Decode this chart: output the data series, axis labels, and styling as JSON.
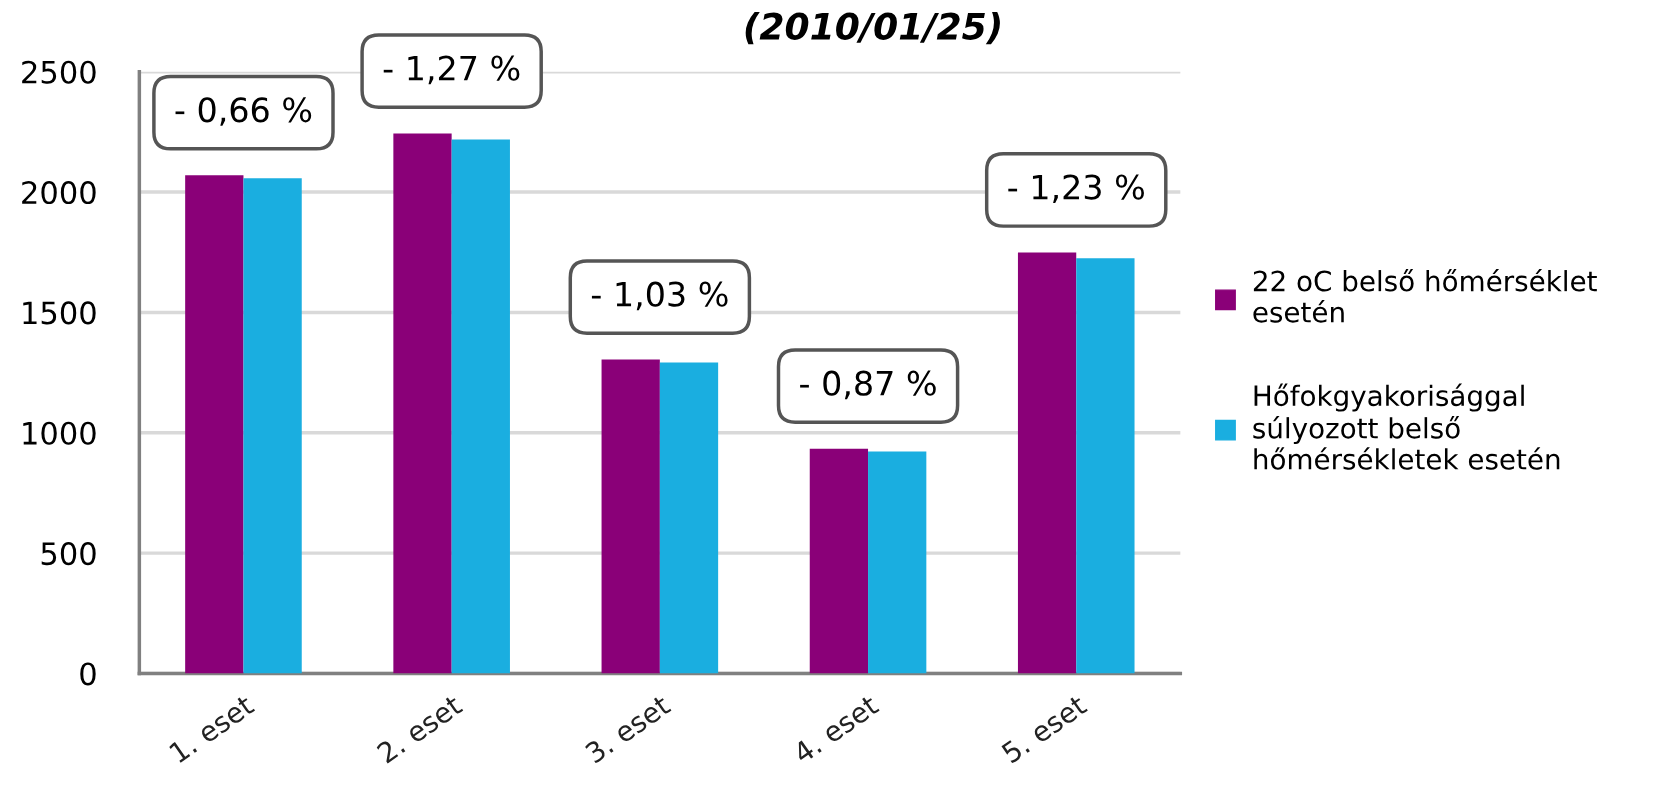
{
  "chart_data": {
    "type": "bar",
    "title": "(2010/01/25)",
    "categories": [
      "1. eset",
      "2. eset",
      "3. eset",
      "4. eset",
      "5. eset"
    ],
    "series": [
      {
        "name": "22 oC belső hőmérséklet esetén",
        "color": "#8a0078",
        "values": [
          2070,
          2243,
          1304,
          934,
          1749
        ]
      },
      {
        "name": "Hőfokgyakorisággal súlyozott belső hőmérsékletek esetén",
        "color": "#1aaee0",
        "values": [
          2057,
          2218,
          1292,
          922,
          1725
        ]
      }
    ],
    "ylim": [
      0,
      2500
    ],
    "yticks": [
      0,
      500,
      1000,
      1500,
      2000,
      2500
    ],
    "grid": "y",
    "legend": "right",
    "annotations": [
      "- 0,66 %",
      "- 1,27 %",
      "- 1,03 %",
      "- 0,87 %",
      "- 1,23 %"
    ]
  }
}
